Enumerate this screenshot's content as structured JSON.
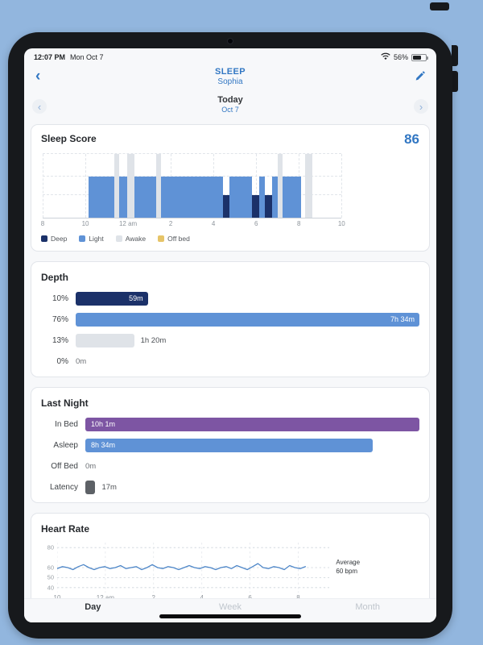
{
  "colors": {
    "accent_blue": "#3277c3",
    "deep": "#1b3169",
    "light": "#5f92d6",
    "awake": "#dfe3e8",
    "offbed": "#e6c468",
    "inbed": "#7d55a3",
    "asleep": "#5f92d6",
    "latency": "#5d6166",
    "heart_line": "#4d86c8"
  },
  "status_bar": {
    "time": "12:07 PM",
    "date": "Mon Oct 7",
    "battery_pct": "56%",
    "battery_level": 56
  },
  "nav": {
    "back_icon": "chevron-left",
    "title": "SLEEP",
    "subtitle": "Sophia",
    "edit_icon": "pencil"
  },
  "date_nav": {
    "prev_icon": "chevron-left-circle",
    "label": "Today",
    "date": "Oct 7",
    "next_icon": "chevron-right-circle"
  },
  "sleep_score_card": {
    "title": "Sleep Score",
    "score": "86",
    "legend": [
      {
        "label": "Deep",
        "color_key": "deep"
      },
      {
        "label": "Light",
        "color_key": "light"
      },
      {
        "label": "Awake",
        "color_key": "awake"
      },
      {
        "label": "Off bed",
        "color_key": "offbed"
      }
    ]
  },
  "depth_card": {
    "title": "Depth",
    "rows": [
      {
        "pct": "10%",
        "value": "59m",
        "stage": "deep",
        "width_pct": 21
      },
      {
        "pct": "76%",
        "value": "7h 34m",
        "stage": "light",
        "width_pct": 100
      },
      {
        "pct": "13%",
        "value": "1h 20m",
        "stage": "awake",
        "width_pct": 17
      },
      {
        "pct": "0%",
        "value": "0m",
        "stage": "none",
        "width_pct": 0
      }
    ]
  },
  "last_night_card": {
    "title": "Last Night",
    "rows": [
      {
        "label": "In Bed",
        "value": "10h 1m",
        "color_key": "inbed",
        "width_pct": 100
      },
      {
        "label": "Asleep",
        "value": "8h 34m",
        "color_key": "asleep",
        "width_pct": 86
      },
      {
        "label": "Off Bed",
        "value": "0m",
        "color_key": "none",
        "width_pct": 0
      },
      {
        "label": "Latency",
        "value": "17m",
        "color_key": "latency",
        "width_pct": 3
      }
    ]
  },
  "heart_rate_card": {
    "title": "Heart Rate",
    "average_label": "Average",
    "average_value": "60 bpm"
  },
  "tabs": {
    "items": [
      {
        "label": "Day",
        "selected": true
      },
      {
        "label": "Week",
        "selected": false
      },
      {
        "label": "Month",
        "selected": false
      }
    ]
  },
  "chart_data": [
    {
      "type": "hypnogram",
      "title": "Sleep Score",
      "x_domain_hours": [
        0,
        14
      ],
      "x_start_clock": "8 pm",
      "x_tick_hours": [
        0,
        2,
        4,
        6,
        8,
        10,
        12,
        14
      ],
      "x_tick_labels": [
        "8",
        "10",
        "12 am",
        "2",
        "4",
        "6",
        "8",
        "10"
      ],
      "stage_levels_pct": {
        "awake": 100,
        "light": 65,
        "deep": 36
      },
      "segments": [
        {
          "stage": "light",
          "start": 2.15,
          "end": 3.35
        },
        {
          "stage": "awake",
          "start": 3.35,
          "end": 3.6
        },
        {
          "stage": "light",
          "start": 3.6,
          "end": 3.95
        },
        {
          "stage": "awake",
          "start": 3.95,
          "end": 4.3
        },
        {
          "stage": "light",
          "start": 4.3,
          "end": 5.3
        },
        {
          "stage": "awake",
          "start": 5.3,
          "end": 5.55
        },
        {
          "stage": "light",
          "start": 5.55,
          "end": 8.45
        },
        {
          "stage": "deep",
          "start": 8.45,
          "end": 8.75
        },
        {
          "stage": "light",
          "start": 8.75,
          "end": 9.8
        },
        {
          "stage": "deep",
          "start": 9.8,
          "end": 10.15
        },
        {
          "stage": "light",
          "start": 10.15,
          "end": 10.4
        },
        {
          "stage": "deep",
          "start": 10.4,
          "end": 10.75
        },
        {
          "stage": "light",
          "start": 10.75,
          "end": 11.0
        },
        {
          "stage": "awake",
          "start": 11.0,
          "end": 11.25
        },
        {
          "stage": "light",
          "start": 11.25,
          "end": 12.1
        },
        {
          "stage": "awake",
          "start": 12.3,
          "end": 12.65
        }
      ]
    },
    {
      "type": "line",
      "title": "Heart Rate",
      "ylabel": "bpm",
      "average_bpm": 60,
      "ylim": [
        35,
        85
      ],
      "y_ticks": [
        40,
        50,
        60,
        80
      ],
      "x_domain": [
        0,
        11.3
      ],
      "x_data_span": [
        0,
        10.3
      ],
      "x_tick_hours": [
        0,
        2,
        4,
        6,
        8,
        10
      ],
      "x_tick_labels": [
        "10",
        "12 am",
        "2",
        "4",
        "6",
        "8"
      ],
      "values": [
        59,
        61,
        60,
        58,
        61,
        63,
        60,
        58,
        60,
        61,
        59,
        60,
        62,
        59,
        60,
        61,
        58,
        60,
        63,
        60,
        59,
        61,
        60,
        58,
        60,
        62,
        60,
        59,
        61,
        60,
        58,
        60,
        61,
        59,
        62,
        60,
        58,
        61,
        64,
        60,
        59,
        61,
        60,
        58,
        62,
        60,
        59,
        61
      ]
    }
  ]
}
